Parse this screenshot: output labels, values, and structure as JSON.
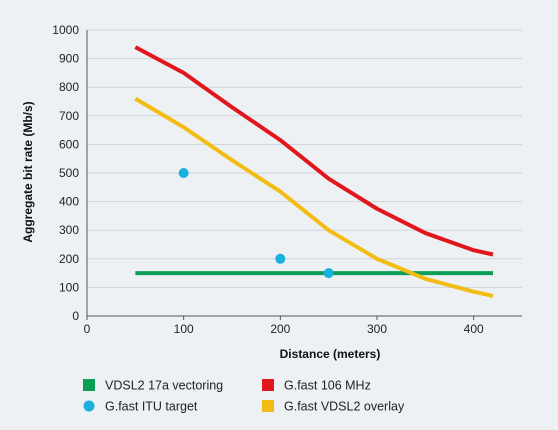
{
  "chart_data": {
    "type": "line",
    "title": "",
    "xlabel": "Distance (meters)",
    "ylabel": "Aggregate bit rate (Mb/s)",
    "xlim": [
      0,
      450
    ],
    "ylim": [
      0,
      1000
    ],
    "xticks": [
      0,
      100,
      200,
      300,
      400
    ],
    "yticks": [
      0,
      100,
      200,
      300,
      400,
      500,
      600,
      700,
      800,
      900,
      1000
    ],
    "grid": "horizontal",
    "legend": "bottom",
    "series": [
      {
        "name": "VDSL2 17a vectoring",
        "kind": "line",
        "color": "#0b9e57",
        "x": [
          50,
          420
        ],
        "y": [
          150,
          150
        ]
      },
      {
        "name": "G.fast 106 MHz",
        "kind": "line",
        "color": "#e0171d",
        "x": [
          50,
          100,
          150,
          200,
          250,
          300,
          350,
          400,
          420
        ],
        "y": [
          940,
          850,
          730,
          615,
          480,
          375,
          290,
          230,
          215
        ]
      },
      {
        "name": "G.fast ITU target",
        "kind": "scatter",
        "color": "#1ab0e0",
        "x": [
          100,
          200,
          250
        ],
        "y": [
          500,
          200,
          150
        ]
      },
      {
        "name": "G.fast VDSL2 overlay",
        "kind": "line",
        "color": "#f2bc15",
        "x": [
          50,
          100,
          150,
          200,
          250,
          300,
          350,
          400,
          420
        ],
        "y": [
          760,
          660,
          545,
          435,
          300,
          200,
          130,
          85,
          70
        ]
      }
    ]
  }
}
